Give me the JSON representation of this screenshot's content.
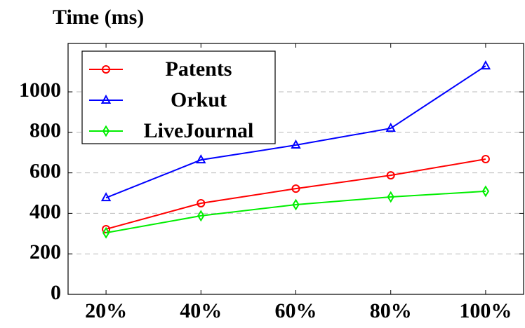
{
  "chart_data": {
    "type": "line",
    "y_label": "Time (ms)",
    "x": [
      20,
      40,
      60,
      80,
      100
    ],
    "xlim": [
      12,
      108
    ],
    "xticks": [
      {
        "value": 20,
        "label": "20%"
      },
      {
        "value": 40,
        "label": "40%"
      },
      {
        "value": 60,
        "label": "60%"
      },
      {
        "value": 80,
        "label": "80%"
      },
      {
        "value": 100,
        "label": "100%"
      }
    ],
    "ylim": [
      0,
      1239
    ],
    "yticks": [
      0,
      200,
      400,
      600,
      800,
      1000
    ],
    "grid": true,
    "legend": "upper left",
    "series": [
      {
        "name": "Patents",
        "color": "#ff0000",
        "marker": "circle",
        "values": [
          322,
          450,
          522,
          588,
          668
        ]
      },
      {
        "name": "Orkut",
        "color": "#0000ff",
        "marker": "triangle",
        "values": [
          477,
          664,
          737,
          820,
          1128
        ]
      },
      {
        "name": "LiveJournal",
        "color": "#00ee00",
        "marker": "diamond",
        "values": [
          304,
          388,
          443,
          481,
          509
        ]
      }
    ]
  }
}
